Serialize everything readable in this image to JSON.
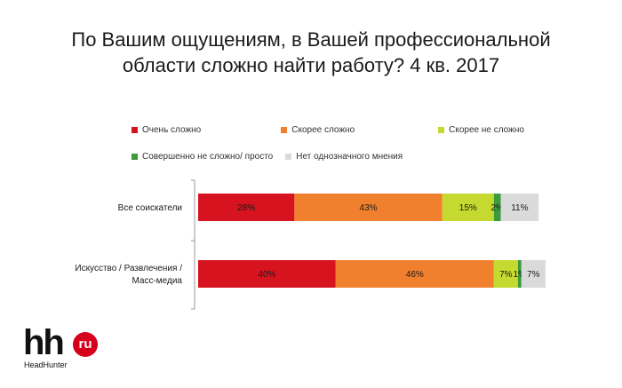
{
  "chart_data": {
    "type": "bar",
    "stacked": true,
    "orientation": "horizontal",
    "title": "По Вашим ощущениям, в Вашей профессиональной\nобласти сложно найти работу? 4 кв. 2017",
    "title_lines": [
      "По Вашим ощущениям, в Вашей профессиональной",
      "области сложно найти работу? 4 кв. 2017"
    ],
    "xlabel": "",
    "ylabel": "",
    "xlim": [
      0,
      100
    ],
    "grid": false,
    "legend_position": "top",
    "categories": [
      {
        "lines": [
          "Все соискатели"
        ]
      },
      {
        "lines": [
          "Искусство / Развлечения /",
          "Масс-медиа"
        ]
      }
    ],
    "series": [
      {
        "name": "Очень сложно",
        "color": "#d7131f",
        "values": [
          28,
          40
        ],
        "labels": [
          "28%",
          "40%"
        ]
      },
      {
        "name": "Скорее сложно",
        "color": "#f0802e",
        "values": [
          43,
          46
        ],
        "labels": [
          "43%",
          "46%"
        ]
      },
      {
        "name": "Скорее не сложно",
        "color": "#c5d930",
        "values": [
          15,
          7
        ],
        "labels": [
          "15%",
          "7%"
        ]
      },
      {
        "name": "Совершенно не сложно/ просто",
        "color": "#3a9a3c",
        "values": [
          2,
          1
        ],
        "labels": [
          "2%",
          "1%"
        ]
      },
      {
        "name": "Нет однозначного мнения",
        "color": "#dadada",
        "values": [
          11,
          7
        ],
        "labels": [
          "11%",
          "7%"
        ]
      }
    ]
  },
  "logo": {
    "mark": "hh",
    "badge": "ru",
    "sub": "HeadHunter",
    "badge_color": "#d6001c"
  }
}
